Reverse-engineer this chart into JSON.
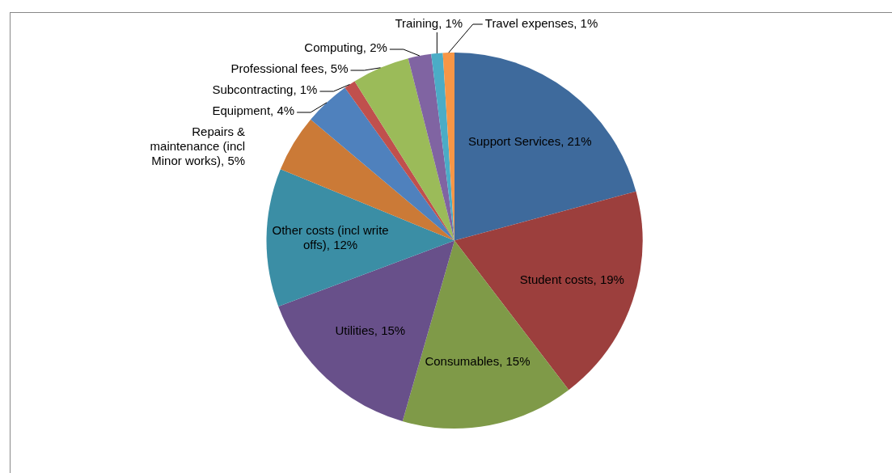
{
  "chart_data": {
    "type": "pie",
    "categories": [
      "Support Services",
      "Student costs",
      "Consumables",
      "Utilities",
      "Other costs (incl write offs)",
      "Repairs & maintenance (incl Minor works)",
      "Equipment",
      "Subcontracting",
      "Professional fees",
      "Computing",
      "Training",
      "Travel expenses"
    ],
    "values": [
      21,
      19,
      15,
      15,
      12,
      5,
      4,
      1,
      5,
      2,
      1,
      1
    ],
    "value_labels": [
      "21%",
      "19%",
      "15%",
      "15%",
      "12%",
      "5%",
      "4%",
      "1%",
      "5%",
      "2%",
      "1%",
      "1%"
    ],
    "colors": [
      "#3e6a9c",
      "#9c3f3d",
      "#7f9a48",
      "#68508a",
      "#3b8ea5",
      "#cb7a37",
      "#4f81bd",
      "#c0504d",
      "#9bbb59",
      "#8064a2",
      "#4bacc6",
      "#f79646"
    ],
    "legend": false
  }
}
